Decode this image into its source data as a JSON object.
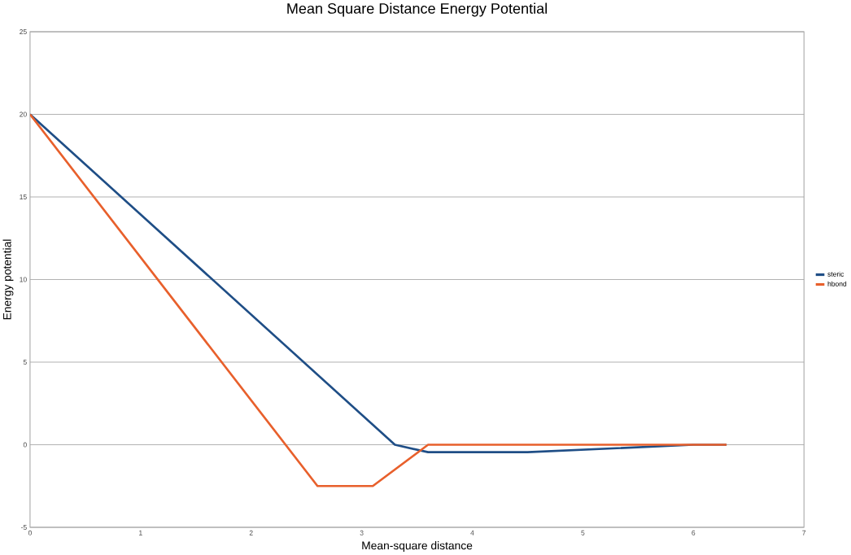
{
  "chart_data": {
    "type": "line",
    "title": "Mean Square Distance Energy Potential",
    "xlabel": "Mean-square distance",
    "ylabel": "Energy potential",
    "series": [
      {
        "name": "steric",
        "color": "#1f4e86",
        "x": [
          0,
          3.3,
          3.6,
          4.5,
          6.0,
          6.3
        ],
        "values": [
          20,
          0,
          -0.45,
          -0.45,
          0,
          0
        ]
      },
      {
        "name": "hbond",
        "color": "#e8602c",
        "x": [
          0,
          2.6,
          3.1,
          3.6,
          6.3
        ],
        "values": [
          20,
          -2.5,
          -2.5,
          0,
          0
        ]
      }
    ],
    "xlim": [
      0,
      7
    ],
    "xticks": [
      0,
      1,
      2,
      3,
      4,
      5,
      6,
      7
    ],
    "ylim": [
      -5,
      25
    ],
    "yticks": [
      -5,
      0,
      5,
      10,
      15,
      20,
      25
    ],
    "grid": "y",
    "legend": "right",
    "marker": "none",
    "line_style": "solid"
  }
}
